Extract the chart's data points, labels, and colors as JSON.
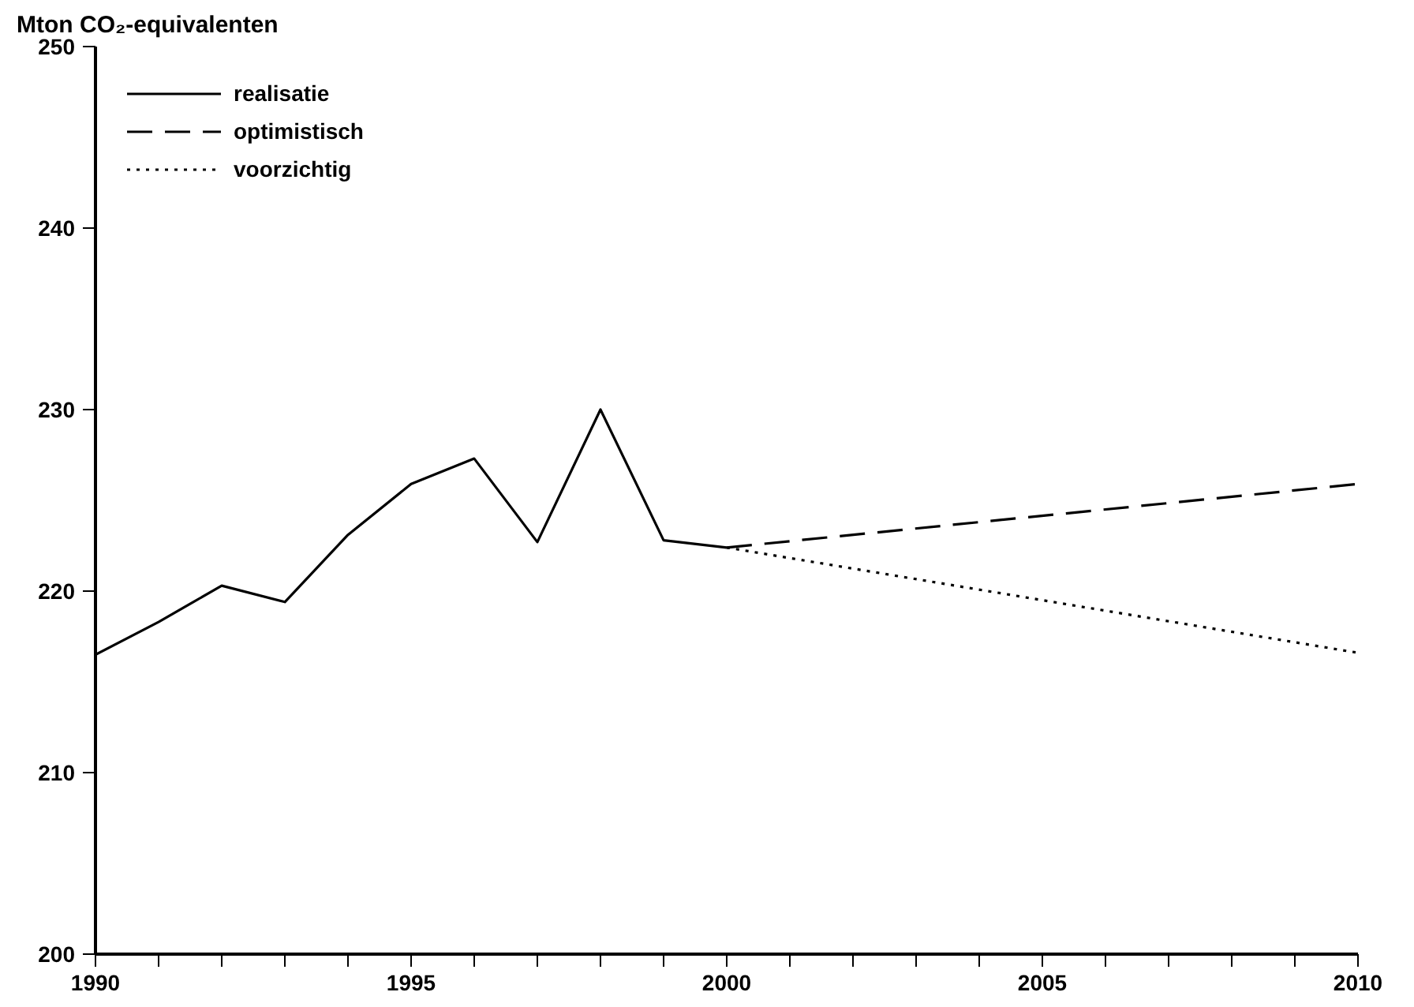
{
  "chart_data": {
    "type": "line",
    "ylabel": "Mton CO₂-equivalenten",
    "xlim": [
      1990,
      2010
    ],
    "ylim": [
      200,
      250
    ],
    "xticks": [
      1990,
      {
        "value": 1991,
        "label": null
      },
      {
        "value": 1992,
        "label": null
      },
      {
        "value": 1993,
        "label": null
      },
      {
        "value": 1994,
        "label": null
      },
      1995,
      {
        "value": 1996,
        "label": null
      },
      {
        "value": 1997,
        "label": null
      },
      {
        "value": 1998,
        "label": null
      },
      {
        "value": 1999,
        "label": null
      },
      2000,
      {
        "value": 2001,
        "label": null
      },
      {
        "value": 2002,
        "label": null
      },
      {
        "value": 2003,
        "label": null
      },
      {
        "value": 2004,
        "label": null
      },
      2005,
      {
        "value": 2006,
        "label": null
      },
      {
        "value": 2007,
        "label": null
      },
      {
        "value": 2008,
        "label": null
      },
      {
        "value": 2009,
        "label": null
      },
      2010
    ],
    "yticks": [
      200,
      210,
      220,
      230,
      240,
      250
    ],
    "grid": false,
    "legend": "top left",
    "series": [
      {
        "name": "realisatie",
        "color": "#000000",
        "line_style": "solid",
        "x": [
          1990,
          1991,
          1992,
          1993,
          1994,
          1995,
          1996,
          1997,
          1998,
          1999,
          2000
        ],
        "values": [
          216.5,
          218.3,
          220.3,
          219.4,
          223.1,
          225.9,
          227.3,
          222.7,
          230.0,
          222.8,
          222.4
        ]
      },
      {
        "name": "optimistisch",
        "color": "#000000",
        "line_style": "dashed",
        "x": [
          2000,
          2010
        ],
        "values": [
          222.4,
          225.9
        ]
      },
      {
        "name": "voorzichtig",
        "color": "#000000",
        "line_style": "dotted",
        "x": [
          2000,
          2010
        ],
        "values": [
          222.4,
          216.6
        ]
      }
    ]
  }
}
